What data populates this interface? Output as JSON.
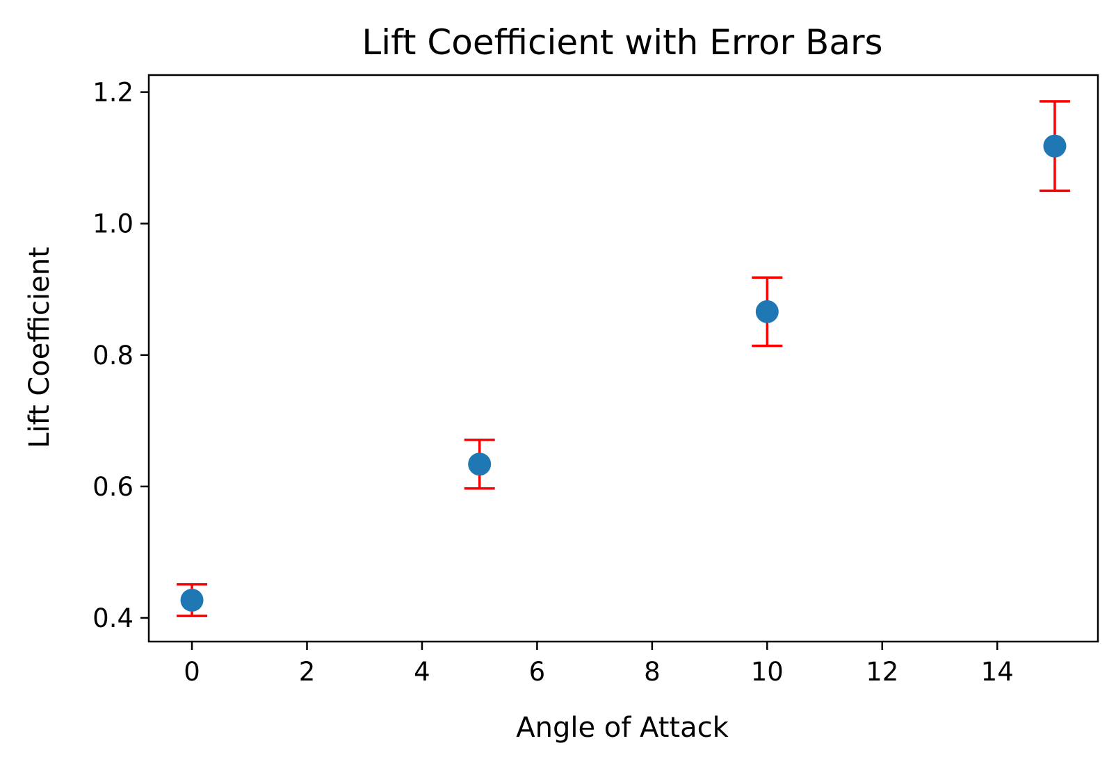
{
  "chart_data": {
    "type": "scatter",
    "title": "Lift Coefficient with Error Bars",
    "xlabel": "Angle of Attack",
    "ylabel": "Lift Coefficient",
    "xlim": [
      -0.75,
      15.75
    ],
    "ylim": [
      0.364,
      1.226
    ],
    "xticks": [
      0,
      2,
      4,
      6,
      8,
      10,
      12,
      14
    ],
    "yticks": [
      0.4,
      0.6,
      0.8,
      1.0,
      1.2
    ],
    "xtick_labels": [
      "0",
      "2",
      "4",
      "6",
      "8",
      "10",
      "12",
      "14"
    ],
    "ytick_labels": [
      "0.4",
      "0.6",
      "0.8",
      "1.0",
      "1.2"
    ],
    "grid": false,
    "legend": false,
    "marker_color": "#1f77b4",
    "error_color": "#ff0000",
    "points": [
      {
        "x": 0,
        "y": 0.427,
        "yerr": 0.024
      },
      {
        "x": 5,
        "y": 0.634,
        "yerr": 0.037
      },
      {
        "x": 10,
        "y": 0.866,
        "yerr": 0.052
      },
      {
        "x": 15,
        "y": 1.118,
        "yerr": 0.068
      }
    ]
  }
}
